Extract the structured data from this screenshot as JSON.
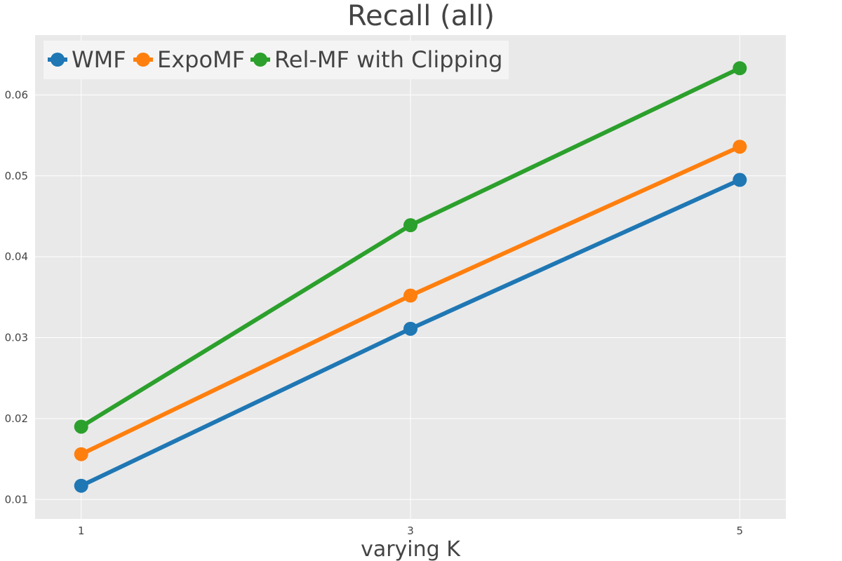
{
  "chart_data": {
    "type": "line",
    "title": "Recall (all)",
    "xlabel": "varying K",
    "ylabel": "",
    "x": [
      1,
      3,
      5
    ],
    "x_ticks": [
      "1",
      "3",
      "5"
    ],
    "xlim": [
      0.72,
      5.28
    ],
    "ylim": [
      0.0076,
      0.0674
    ],
    "y_ticks": [
      "0.01",
      "0.02",
      "0.03",
      "0.04",
      "0.05",
      "0.06"
    ],
    "y_tick_values": [
      0.01,
      0.02,
      0.03,
      0.04,
      0.05,
      0.06
    ],
    "grid": true,
    "legend_position": "top-left",
    "series": [
      {
        "name": "WMF",
        "color": "#1f77b4",
        "values": [
          0.0117,
          0.0311,
          0.0495
        ]
      },
      {
        "name": "ExpoMF",
        "color": "#ff7f0e",
        "values": [
          0.0156,
          0.0352,
          0.0536
        ]
      },
      {
        "name": "Rel-MF with Clipping",
        "color": "#2ca02c",
        "values": [
          0.019,
          0.0439,
          0.0633
        ]
      }
    ]
  },
  "colors": {
    "plot_background": "#e9e9e9",
    "grid": "#ffffff",
    "legend_background": "#f4f4f4"
  }
}
